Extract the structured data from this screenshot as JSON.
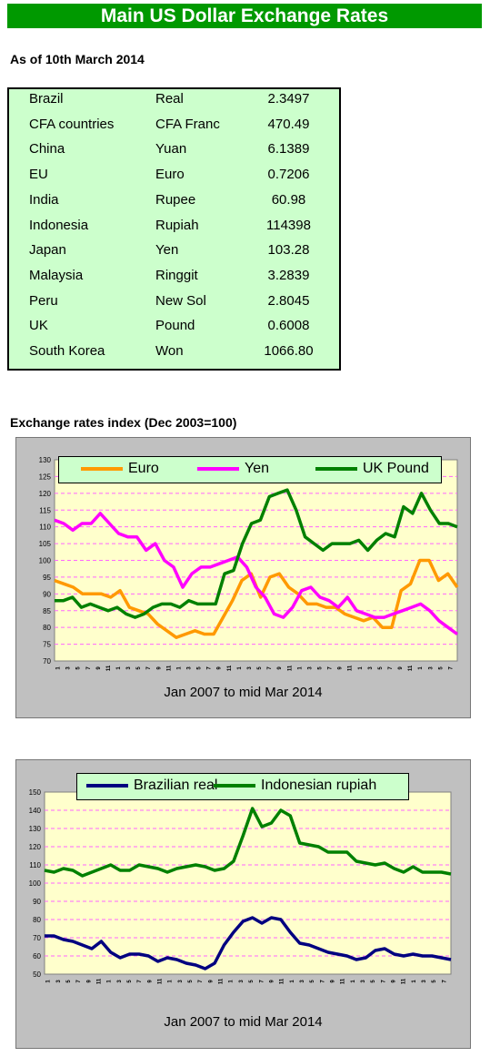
{
  "header": {
    "title": "Main US Dollar Exchange Rates",
    "as_of": "As of 10th March 2014"
  },
  "rates": [
    {
      "country": "Brazil",
      "currency": "Real",
      "value": "2.3497"
    },
    {
      "country": "CFA countries",
      "currency": "CFA Franc",
      "value": "470.49"
    },
    {
      "country": "China",
      "currency": "Yuan",
      "value": "6.1389"
    },
    {
      "country": "EU",
      "currency": "Euro",
      "value": "0.7206"
    },
    {
      "country": "India",
      "currency": "Rupee",
      "value": "60.98"
    },
    {
      "country": "Indonesia",
      "currency": "Rupiah",
      "value": "114398"
    },
    {
      "country": "Japan",
      "currency": "Yen",
      "value": "103.28"
    },
    {
      "country": "Malaysia",
      "currency": "Ringgit",
      "value": "3.2839"
    },
    {
      "country": "Peru",
      "currency": "New Sol",
      "value": "2.8045"
    },
    {
      "country": "UK",
      "currency": "Pound",
      "value": "0.6008"
    },
    {
      "country": "South Korea",
      "currency": "Won",
      "value": "1066.80"
    }
  ],
  "index_title": "Exchange rates index (Dec 2003=100)",
  "chart_data": [
    {
      "type": "line",
      "xlabel": "Jan 2007 to mid Mar 2014",
      "ylim": [
        70,
        130
      ],
      "yticks": [
        70,
        75,
        80,
        85,
        90,
        95,
        100,
        105,
        110,
        115,
        120,
        125,
        130
      ],
      "grid": true,
      "legend": "top",
      "colors": {
        "plot_bg": "#ffffcc",
        "grid": "#ff66ff",
        "legend_bg": "#ccffcc"
      },
      "xtick_labels": [
        "1",
        "3",
        "5",
        "7",
        "9",
        "11",
        "1",
        "3",
        "5",
        "7",
        "9",
        "11",
        "1",
        "3",
        "5",
        "7",
        "9",
        "11",
        "1",
        "3",
        "5",
        "7",
        "9",
        "11",
        "1",
        "3",
        "5",
        "7",
        "9",
        "11",
        "1",
        "3",
        "5",
        "7",
        "9",
        "11",
        "1",
        "3",
        "5",
        "7"
      ],
      "series": [
        {
          "name": "Euro",
          "color": "#ff9900",
          "values": [
            94,
            93,
            92,
            90,
            90,
            90,
            89,
            91,
            86,
            85,
            84,
            81,
            79,
            77,
            78,
            79,
            78,
            78,
            83,
            88,
            94,
            96,
            89,
            95,
            96,
            92,
            90,
            87,
            87,
            86,
            86,
            84,
            83,
            82,
            83,
            80,
            80,
            91,
            93,
            100,
            100,
            94,
            96,
            92
          ]
        },
        {
          "name": "Yen",
          "color": "#ff00ff",
          "values": [
            112,
            111,
            109,
            111,
            111,
            114,
            111,
            108,
            107,
            107,
            103,
            105,
            100,
            98,
            92,
            96,
            98,
            98,
            99,
            100,
            101,
            98,
            92,
            89,
            84,
            83,
            86,
            91,
            92,
            89,
            88,
            86,
            89,
            85,
            84,
            83,
            83,
            84,
            85,
            86,
            87,
            85,
            82,
            80,
            78
          ]
        },
        {
          "name": "UK Pound",
          "color": "#008000",
          "values": [
            88,
            88,
            89,
            86,
            87,
            86,
            85,
            86,
            84,
            83,
            84,
            86,
            87,
            87,
            86,
            88,
            87,
            87,
            87,
            96,
            97,
            105,
            111,
            112,
            119,
            120,
            121,
            115,
            107,
            105,
            103,
            105,
            105,
            105,
            106,
            103,
            106,
            108,
            107,
            116,
            114,
            120,
            115,
            111,
            111,
            110
          ]
        }
      ]
    },
    {
      "type": "line",
      "xlabel": "Jan 2007 to mid Mar 2014",
      "ylim": [
        50,
        150
      ],
      "yticks": [
        50,
        60,
        70,
        80,
        90,
        100,
        110,
        120,
        130,
        140,
        150
      ],
      "grid": true,
      "legend": "top",
      "colors": {
        "plot_bg": "#ffffcc",
        "grid": "#ff66ff",
        "legend_bg": "#ccffcc"
      },
      "xtick_labels": [
        "1",
        "3",
        "5",
        "7",
        "9",
        "11",
        "1",
        "3",
        "5",
        "7",
        "9",
        "11",
        "1",
        "3",
        "5",
        "7",
        "9",
        "11",
        "1",
        "3",
        "5",
        "7",
        "9",
        "11",
        "1",
        "3",
        "5",
        "7",
        "9",
        "11",
        "1",
        "3",
        "5",
        "7",
        "9",
        "11",
        "1",
        "3",
        "5",
        "7"
      ],
      "series": [
        {
          "name": "Brazilian real",
          "color": "#000080",
          "values": [
            71,
            71,
            69,
            68,
            66,
            64,
            68,
            62,
            59,
            61,
            61,
            60,
            57,
            59,
            58,
            56,
            55,
            53,
            56,
            66,
            73,
            79,
            81,
            78,
            81,
            80,
            73,
            67,
            66,
            64,
            62,
            61,
            60,
            58,
            59,
            63,
            64,
            61,
            60,
            61,
            60,
            60,
            59,
            58
          ]
        },
        {
          "name": "Indonesian rupiah",
          "color": "#008000",
          "values": [
            107,
            106,
            108,
            107,
            104,
            106,
            108,
            110,
            107,
            107,
            110,
            109,
            108,
            106,
            108,
            109,
            110,
            109,
            107,
            108,
            112,
            126,
            141,
            131,
            133,
            140,
            137,
            122,
            121,
            120,
            117,
            117,
            117,
            112,
            111,
            110,
            111,
            108,
            106,
            109,
            106,
            106,
            106,
            105
          ]
        }
      ]
    }
  ]
}
